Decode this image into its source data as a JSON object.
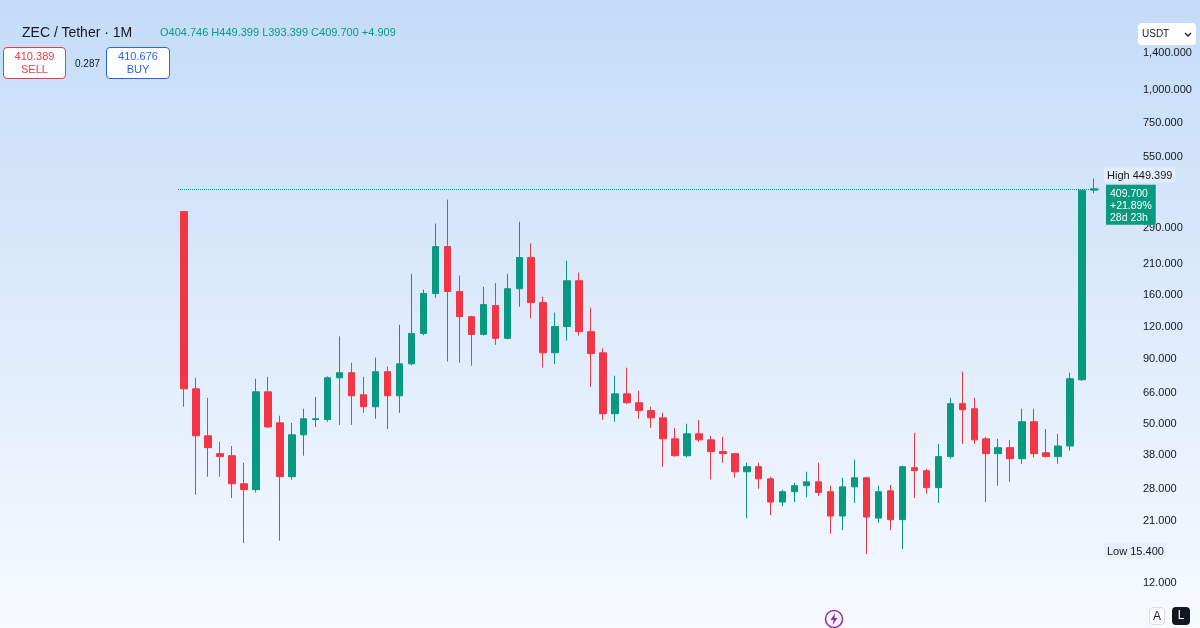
{
  "chart_data": {
    "type": "candlestick",
    "title": "ZEC / Tether · 1M",
    "categories": [
      null,
      null,
      null,
      null,
      null,
      null,
      null,
      null,
      null,
      null,
      null,
      null,
      null,
      null,
      null,
      null,
      null,
      null,
      null,
      null,
      null,
      null,
      null,
      null,
      null,
      null,
      null,
      null,
      null,
      null,
      null,
      null,
      null,
      null,
      null,
      null,
      null,
      null,
      null,
      null,
      null,
      null,
      null,
      null,
      null,
      null,
      null,
      null,
      null,
      null,
      null,
      null,
      null,
      null,
      null,
      null,
      null,
      null,
      null,
      null,
      null,
      null,
      null,
      null,
      null,
      null,
      null,
      null,
      null,
      null,
      null,
      null,
      null,
      null,
      null,
      null,
      null
    ],
    "ohlc": [
      [
        334,
        334,
        57.9,
        68
      ],
      [
        68,
        75.1,
        26.3,
        44.6
      ],
      [
        44.6,
        62.7,
        30.9,
        40.1
      ],
      [
        38,
        42.3,
        30.9,
        37
      ],
      [
        37.3,
        40.7,
        25.5,
        29
      ],
      [
        29,
        35,
        17,
        27.5
      ],
      [
        27.5,
        74.5,
        26.8,
        66.2
      ],
      [
        66.2,
        75.8,
        47.9,
        48.3
      ],
      [
        50.1,
        53.4,
        17.4,
        30.9
      ],
      [
        30.9,
        50.1,
        30.1,
        45
      ],
      [
        45,
        56.9,
        37.3,
        52
      ],
      [
        51.6,
        63.3,
        48.3,
        52
      ],
      [
        51.6,
        76,
        50.6,
        75.1
      ],
      [
        75.1,
        108.9,
        49.2,
        78.6
      ],
      [
        78.6,
        86,
        49.2,
        63.9
      ],
      [
        64.5,
        75.8,
        54.8,
        57.9
      ],
      [
        57.9,
        90,
        52,
        79.3
      ],
      [
        79.3,
        83,
        47.4,
        63.9
      ],
      [
        63.9,
        121,
        54.8,
        85.1
      ],
      [
        85.1,
        191,
        84,
        111.8
      ],
      [
        111.8,
        166,
        110,
        160
      ],
      [
        160,
        300,
        154,
        244
      ],
      [
        244,
        372,
        86.8,
        163
      ],
      [
        163,
        188,
        86,
        130
      ],
      [
        130,
        131,
        83.7,
        110.8
      ],
      [
        110.8,
        170,
        109.8,
        144.9
      ],
      [
        143.6,
        176,
        101,
        107
      ],
      [
        107,
        191,
        106,
        167
      ],
      [
        167,
        305,
        142,
        221
      ],
      [
        221,
        251,
        128,
        147.5
      ],
      [
        147.5,
        155.7,
        82.2,
        94
      ],
      [
        94,
        134.8,
        85.1,
        119
      ],
      [
        119,
        215,
        105,
        179.5
      ],
      [
        179.5,
        193,
        109.8,
        113.6
      ],
      [
        113.6,
        141,
        69.2,
        93.3
      ],
      [
        94,
        97.8,
        51.5,
        54.4
      ],
      [
        54.4,
        76.5,
        50.6,
        65
      ],
      [
        65,
        82.2,
        59.5,
        60
      ],
      [
        60,
        66.8,
        52,
        55.9
      ],
      [
        55.9,
        57.9,
        47.9,
        52.4
      ],
      [
        52.4,
        54.8,
        33.8,
        43.4
      ],
      [
        43.4,
        47.9,
        37,
        37.3
      ],
      [
        37.3,
        49.7,
        36.7,
        45.4
      ],
      [
        45.4,
        51.5,
        42.3,
        43
      ],
      [
        43,
        44.6,
        30.1,
        38.7
      ],
      [
        38.7,
        44.2,
        35,
        38
      ],
      [
        38,
        38.1,
        30.6,
        32.3
      ],
      [
        32.3,
        35,
        21.3,
        33.8
      ],
      [
        33.8,
        35,
        27.7,
        30.3
      ],
      [
        30.3,
        30.9,
        21.9,
        24.6
      ],
      [
        24.6,
        27.5,
        23.7,
        27
      ],
      [
        27,
        29.3,
        24.6,
        28.5
      ],
      [
        28.5,
        32.3,
        25.7,
        29.5
      ],
      [
        29.5,
        35,
        26,
        26.8
      ],
      [
        27,
        28.5,
        18.5,
        21.7
      ],
      [
        21.7,
        30.6,
        19.1,
        28.2
      ],
      [
        28.2,
        36,
        24.4,
        30.6
      ],
      [
        30.6,
        30.7,
        15.4,
        21.5
      ],
      [
        21.3,
        28.5,
        20.4,
        27
      ],
      [
        27.2,
        28.7,
        19.1,
        21
      ],
      [
        21,
        34.1,
        16.1,
        33.8
      ],
      [
        33.5,
        45.8,
        25.5,
        32.6
      ],
      [
        32.6,
        33.2,
        26.5,
        28
      ],
      [
        28,
        41.5,
        24.4,
        37
      ],
      [
        37,
        62.7,
        36.3,
        59.5
      ],
      [
        59.5,
        79.3,
        41.5,
        56.4
      ],
      [
        56.9,
        62.7,
        41.5,
        43
      ],
      [
        43.4,
        44.2,
        24.6,
        38
      ],
      [
        38,
        43.4,
        28.5,
        40.1
      ],
      [
        40.1,
        43,
        29.5,
        36.3
      ],
      [
        36.3,
        56.9,
        34.7,
        50.6
      ],
      [
        50.6,
        56.9,
        36.7,
        38
      ],
      [
        38.3,
        47.4,
        36.7,
        37
      ],
      [
        37,
        45.4,
        34.7,
        40.7
      ],
      [
        40.7,
        78.6,
        39,
        74.5
      ],
      [
        73.8,
        405,
        73,
        404.7
      ],
      [
        404.746,
        449.399,
        393.399,
        409.7
      ]
    ],
    "colors": [
      "#f23645",
      "#f23645",
      "#f23645",
      "#f23645",
      "#f23645",
      "#f23645",
      "#089981",
      "#f23645",
      "#f23645",
      "#089981",
      "#089981",
      "#089981",
      "#089981",
      "#089981",
      "#f23645",
      "#f23645",
      "#089981",
      "#f23645",
      "#089981",
      "#089981",
      "#089981",
      "#089981",
      "#f23645",
      "#f23645",
      "#f23645",
      "#089981",
      "#f23645",
      "#089981",
      "#089981",
      "#f23645",
      "#f23645",
      "#089981",
      "#089981",
      "#f23645",
      "#f23645",
      "#f23645",
      "#089981",
      "#f23645",
      "#f23645",
      "#f23645",
      "#f23645",
      "#f23645",
      "#089981",
      "#f23645",
      "#f23645",
      "#f23645",
      "#f23645",
      "#089981",
      "#f23645",
      "#f23645",
      "#089981",
      "#089981",
      "#089981",
      "#f23645",
      "#f23645",
      "#089981",
      "#089981",
      "#f23645",
      "#089981",
      "#f23645",
      "#089981",
      "#f23645",
      "#f23645",
      "#089981",
      "#089981",
      "#f23645",
      "#f23645",
      "#f23645",
      "#089981",
      "#f23645",
      "#089981",
      "#f23645",
      "#f23645",
      "#089981",
      "#089981",
      "#089981",
      "#089981"
    ],
    "log": "y",
    "ylim": [
      12,
      1400
    ],
    "yticks": [
      {
        "value": 12,
        "label": "12.000"
      },
      {
        "value": 21,
        "label": "21.000"
      },
      {
        "value": 28,
        "label": "28.000"
      },
      {
        "value": 38,
        "label": "38.000"
      },
      {
        "value": 50,
        "label": "50.000"
      },
      {
        "value": 66,
        "label": "66.000"
      },
      {
        "value": 90,
        "label": "90.000"
      },
      {
        "value": 120,
        "label": "120.000"
      },
      {
        "value": 160,
        "label": "160.000"
      },
      {
        "value": 210,
        "label": "210.000"
      },
      {
        "value": 290,
        "label": "290.000"
      },
      {
        "value": 550,
        "label": "550.000"
      },
      {
        "value": 750,
        "label": "750.000"
      },
      {
        "value": 1000,
        "label": "1,000.000"
      },
      {
        "value": 1400,
        "label": "1,400.000"
      }
    ],
    "tick_labels": "y",
    "grid": false,
    "ref_lines": [
      {
        "axis": "y",
        "value": 409.7,
        "label": "409.700\n+21.89%\n28d 23h",
        "color": "#089981",
        "line_style": "dotted"
      }
    ],
    "annotations": [
      "O404.746 H449.399 L393.399 C409.700 +4.909",
      "410.389",
      "SELL",
      "0.287",
      "410.676",
      "BUY",
      "USDT",
      "A",
      "L",
      "High 449.399",
      "Low 15.400"
    ]
  }
}
